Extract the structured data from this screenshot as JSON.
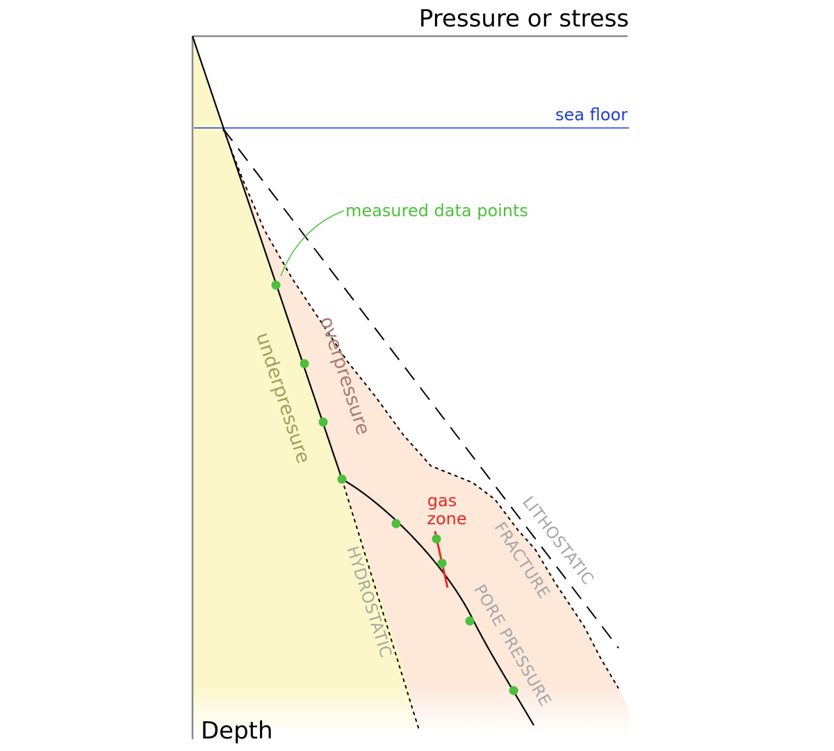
{
  "axes": {
    "top_label": "Pressure or stress",
    "left_label": "Depth"
  },
  "labels": {
    "sea_floor": "sea floor",
    "measured_data_points": "measured data points",
    "gas_zone_line1": "gas",
    "gas_zone_line2": "zone",
    "lithostatic": "LITHOSTATIC",
    "fracture": "FRACTURE",
    "pore_pressure": "PORE PRESSURE",
    "hydrostatic": "HYDROSTATIC",
    "overpressure": "overpressure",
    "underpressure": "underpressure"
  },
  "colors": {
    "axis": "#888888",
    "sea_floor": "#1a3de0",
    "measured_points": "#4cbf3c",
    "gas_zone": "#e52a22",
    "curve_labels": "#a6a6a6",
    "overpressure_text": "#a97a6f",
    "underpressure_text": "#a59c62",
    "underpressure_fill": "#fcf7c8",
    "overpressure_fill": "#fde8da"
  }
}
